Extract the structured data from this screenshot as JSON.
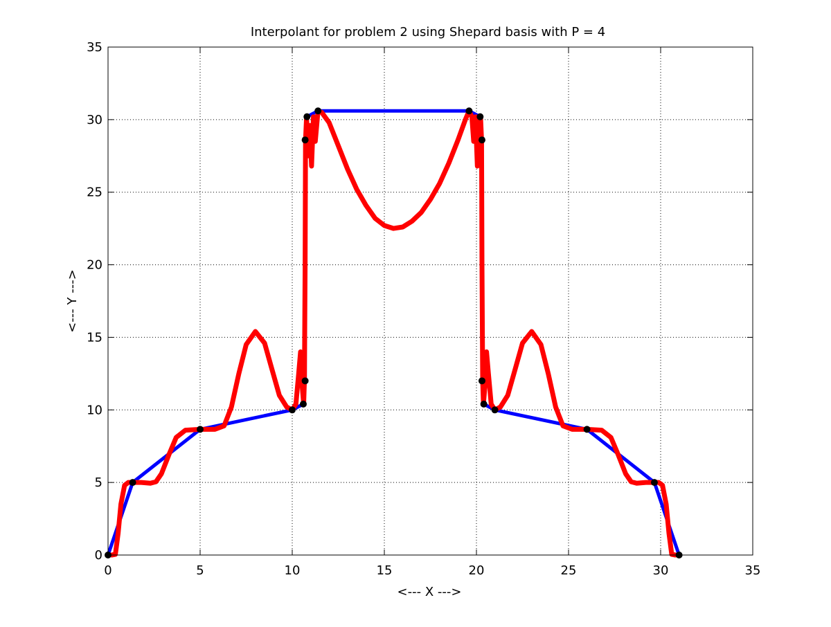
{
  "chart_data": {
    "type": "line",
    "title": "Interpolant for problem 2 using Shepard basis with P = 4",
    "xlabel": "<--- X --->",
    "ylabel": "<--- Y --->",
    "xlim": [
      0,
      35
    ],
    "ylim": [
      0,
      35
    ],
    "x_ticks": [
      0,
      5,
      10,
      15,
      20,
      25,
      30,
      35
    ],
    "y_ticks": [
      0,
      5,
      10,
      15,
      20,
      25,
      30,
      35
    ],
    "grid": true,
    "grid_style": "dotted",
    "series": [
      {
        "style": "line",
        "color": "#0000ff",
        "points": [
          [
            0,
            0
          ],
          [
            1.34,
            5
          ],
          [
            5,
            8.66
          ],
          [
            10,
            10
          ],
          [
            10.6,
            10.4
          ],
          [
            10.7,
            12
          ],
          [
            10.7,
            28.6
          ],
          [
            10.8,
            30.2
          ],
          [
            11.4,
            30.6
          ],
          [
            19.6,
            30.6
          ],
          [
            20.2,
            30.2
          ],
          [
            20.3,
            28.6
          ],
          [
            20.3,
            12
          ],
          [
            20.4,
            10.4
          ],
          [
            21,
            10
          ],
          [
            26,
            8.66
          ],
          [
            29.66,
            5
          ],
          [
            31,
            0
          ]
        ]
      },
      {
        "style": "line",
        "color": "#ff0000",
        "points": [
          [
            0.2,
            0
          ],
          [
            0.4,
            0.05
          ],
          [
            0.55,
            1.5
          ],
          [
            0.7,
            3.5
          ],
          [
            0.9,
            4.8
          ],
          [
            1.1,
            5.0
          ],
          [
            1.34,
            5.0
          ],
          [
            1.8,
            5.0
          ],
          [
            2.3,
            4.95
          ],
          [
            2.6,
            5.05
          ],
          [
            2.9,
            5.6
          ],
          [
            3.3,
            6.9
          ],
          [
            3.7,
            8.1
          ],
          [
            4.2,
            8.6
          ],
          [
            5,
            8.66
          ],
          [
            5.8,
            8.66
          ],
          [
            6.3,
            8.9
          ],
          [
            6.7,
            10.2
          ],
          [
            7.1,
            12.5
          ],
          [
            7.5,
            14.5
          ],
          [
            8,
            15.4
          ],
          [
            8.5,
            14.6
          ],
          [
            8.9,
            12.8
          ],
          [
            9.3,
            11.0
          ],
          [
            9.7,
            10.2
          ],
          [
            10,
            10.0
          ],
          [
            10.2,
            10.4
          ],
          [
            10.35,
            12.5
          ],
          [
            10.45,
            14.0
          ],
          [
            10.55,
            11.5
          ],
          [
            10.62,
            10.4
          ],
          [
            10.66,
            12.0
          ],
          [
            10.7,
            20.0
          ],
          [
            10.72,
            28.6
          ],
          [
            10.78,
            30.2
          ],
          [
            10.85,
            27.5
          ],
          [
            10.95,
            29.6
          ],
          [
            11.05,
            26.8
          ],
          [
            11.15,
            30.2
          ],
          [
            11.25,
            28.5
          ],
          [
            11.4,
            30.6
          ],
          [
            11.6,
            30.5
          ],
          [
            12,
            29.8
          ],
          [
            12.5,
            28.2
          ],
          [
            13,
            26.6
          ],
          [
            13.5,
            25.2
          ],
          [
            14,
            24.1
          ],
          [
            14.5,
            23.2
          ],
          [
            15,
            22.7
          ],
          [
            15.5,
            22.5
          ],
          [
            16,
            22.6
          ],
          [
            16.5,
            23.0
          ],
          [
            17,
            23.6
          ],
          [
            17.5,
            24.5
          ],
          [
            18,
            25.6
          ],
          [
            18.5,
            27.0
          ],
          [
            19,
            28.6
          ],
          [
            19.4,
            30.0
          ],
          [
            19.6,
            30.6
          ],
          [
            19.75,
            30.2
          ],
          [
            19.85,
            28.5
          ],
          [
            19.95,
            30.2
          ],
          [
            20.05,
            26.8
          ],
          [
            20.15,
            29.6
          ],
          [
            20.22,
            30.2
          ],
          [
            20.28,
            28.6
          ],
          [
            20.3,
            20.0
          ],
          [
            20.34,
            12.0
          ],
          [
            20.38,
            10.4
          ],
          [
            20.45,
            11.5
          ],
          [
            20.55,
            14.0
          ],
          [
            20.65,
            12.5
          ],
          [
            20.8,
            10.4
          ],
          [
            21,
            10.0
          ],
          [
            21.3,
            10.2
          ],
          [
            21.7,
            11.0
          ],
          [
            22.1,
            12.8
          ],
          [
            22.5,
            14.6
          ],
          [
            23,
            15.4
          ],
          [
            23.5,
            14.5
          ],
          [
            23.9,
            12.5
          ],
          [
            24.3,
            10.2
          ],
          [
            24.7,
            8.9
          ],
          [
            25.2,
            8.66
          ],
          [
            26,
            8.66
          ],
          [
            26.8,
            8.6
          ],
          [
            27.3,
            8.1
          ],
          [
            27.7,
            6.9
          ],
          [
            28.1,
            5.6
          ],
          [
            28.4,
            5.05
          ],
          [
            28.7,
            4.95
          ],
          [
            29.2,
            5.0
          ],
          [
            29.66,
            5.0
          ],
          [
            29.9,
            5.0
          ],
          [
            30.1,
            4.8
          ],
          [
            30.3,
            3.5
          ],
          [
            30.45,
            1.5
          ],
          [
            30.6,
            0.05
          ],
          [
            30.8,
            0
          ]
        ]
      },
      {
        "style": "markers",
        "color": "#000000",
        "points": [
          [
            0,
            0
          ],
          [
            1.34,
            5
          ],
          [
            5,
            8.66
          ],
          [
            10,
            10
          ],
          [
            10.6,
            10.4
          ],
          [
            10.7,
            12
          ],
          [
            10.7,
            28.6
          ],
          [
            10.8,
            30.2
          ],
          [
            11.4,
            30.6
          ],
          [
            19.6,
            30.6
          ],
          [
            20.2,
            30.2
          ],
          [
            20.3,
            28.6
          ],
          [
            20.3,
            12
          ],
          [
            20.4,
            10.4
          ],
          [
            21,
            10
          ],
          [
            26,
            8.66
          ],
          [
            29.66,
            5
          ],
          [
            31,
            0
          ]
        ]
      }
    ]
  }
}
